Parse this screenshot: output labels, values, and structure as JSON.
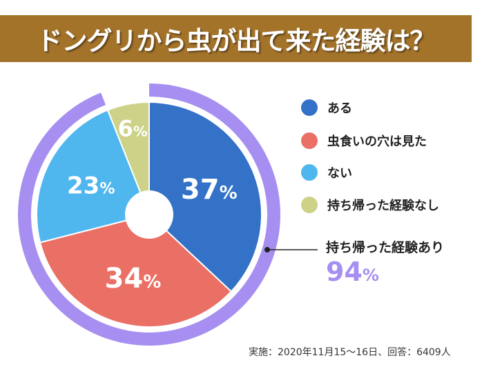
{
  "title": "ドングリから虫が出て来た経験は？",
  "chart_data": {
    "type": "pie",
    "title": "ドングリから虫が出て来た経験は？",
    "categories": [
      "ある",
      "虫食いの穴は見た",
      "ない",
      "持ち帰った経験なし"
    ],
    "values": [
      37,
      34,
      23,
      6
    ],
    "labels": [
      "37",
      "34",
      "23",
      "6"
    ],
    "unit": "%",
    "colors": [
      "#3372c6",
      "#ea6f65",
      "#4fb6ee",
      "#cdd288"
    ],
    "legend_position": "right",
    "ring": {
      "label": "持ち帰った経験あり",
      "value": 94,
      "value_text": "94",
      "color": "#a68ff0"
    }
  },
  "footer": "実施：2020年11月15〜16日、回答：6409人"
}
